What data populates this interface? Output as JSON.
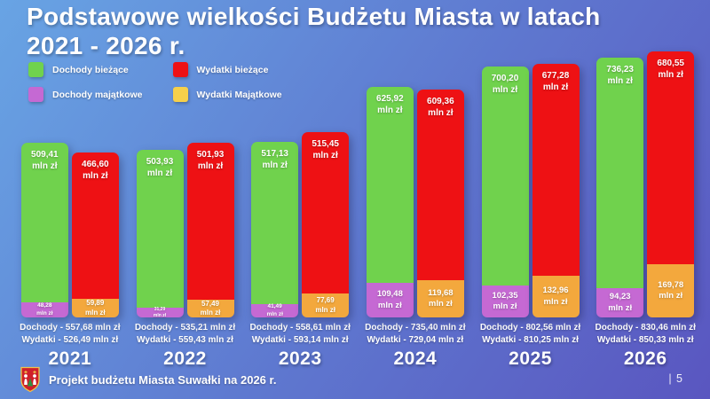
{
  "slide": {
    "title_line1": "Podstawowe wielkości Budżetu Miasta w latach",
    "title_line2": "2021 - 2026 r.",
    "footer_text": "Projekt budżetu Miasta Suwałki na 2026 r.",
    "page_number": "| 5"
  },
  "colors": {
    "bg_top_left": "#68a4e4",
    "bg_mid": "#5e77cf",
    "bg_bottom_right": "#5a56c0",
    "dochody_biezace": "#70d24d",
    "dochody_majatkowe": "#c569d3",
    "wydatki_biezace": "#ee1114",
    "wydatki_majatkowe": "#f3a83d",
    "legend_wydatki_majatkowe_swatch": "#f6d04a"
  },
  "legend": {
    "items": [
      {
        "label": "Dochody bieżące",
        "color": "#70d24d"
      },
      {
        "label": "Wydatki bieżące",
        "color": "#ee1114"
      },
      {
        "label": "Dochody majątkowe",
        "color": "#c569d3"
      },
      {
        "label": "Wydatki Majątkowe",
        "color": "#f6d04a"
      }
    ]
  },
  "chart_data": {
    "type": "bar",
    "unit": "mln zł",
    "categories": [
      "2021",
      "2022",
      "2023",
      "2024",
      "2025",
      "2026"
    ],
    "series": [
      {
        "name": "Dochody bieżące",
        "stack": "dochody",
        "position": "top",
        "color": "#70d24d",
        "values": [
          509.41,
          503.93,
          517.13,
          625.92,
          700.2,
          736.23
        ],
        "labels": [
          "509,41",
          "503,93",
          "517,13",
          "625,92",
          "700,20",
          "736,23"
        ]
      },
      {
        "name": "Dochody majątkowe",
        "stack": "dochody",
        "position": "bottom",
        "color": "#c569d3",
        "values": [
          48.28,
          31.29,
          41.49,
          109.48,
          102.35,
          94.23
        ],
        "labels": [
          "48,28",
          "31,29",
          "41,49",
          "109,48",
          "102,35",
          "94,23"
        ]
      },
      {
        "name": "Wydatki bieżące",
        "stack": "wydatki",
        "position": "top",
        "color": "#ee1114",
        "values": [
          466.6,
          501.93,
          515.45,
          609.36,
          677.28,
          680.55
        ],
        "labels": [
          "466,60",
          "501,93",
          "515,45",
          "609,36",
          "677,28",
          "680,55"
        ]
      },
      {
        "name": "Wydatki Majątkowe",
        "stack": "wydatki",
        "position": "bottom",
        "color": "#f3a83d",
        "values": [
          59.89,
          57.49,
          77.69,
          119.68,
          132.96,
          169.78
        ],
        "labels": [
          "59,89",
          "57,49",
          "77,69",
          "119,68",
          "132,96",
          "169,78"
        ]
      }
    ],
    "totals": {
      "dochody": [
        "557,68",
        "535,21",
        "558,61",
        "735,40",
        "802,56",
        "830,46"
      ],
      "wydatki": [
        "526,49",
        "559,43",
        "593,14",
        "729,04",
        "810,25",
        "850,33"
      ]
    },
    "summary_prefix_dochody": "Dochody -",
    "summary_prefix_wydatki": "Wydatki -",
    "ylim": [
      0,
      860
    ],
    "grid": false,
    "legend_position": "top-left"
  }
}
